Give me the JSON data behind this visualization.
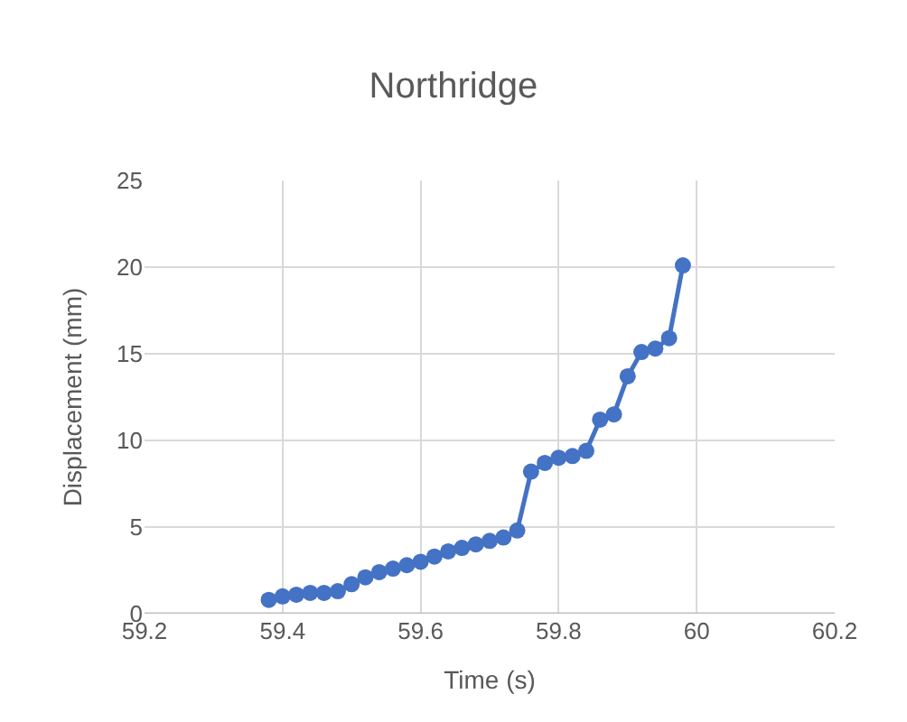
{
  "chart_data": {
    "type": "line",
    "title": "Northridge",
    "xlabel": "Time (s)",
    "ylabel": "Displacement (mm)",
    "x": [
      59.38,
      59.4,
      59.42,
      59.44,
      59.46,
      59.48,
      59.5,
      59.52,
      59.54,
      59.56,
      59.58,
      59.6,
      59.62,
      59.64,
      59.66,
      59.68,
      59.7,
      59.72,
      59.74,
      59.76,
      59.78,
      59.8,
      59.82,
      59.84,
      59.86,
      59.88,
      59.9,
      59.92,
      59.94,
      59.96,
      59.98
    ],
    "series": [
      {
        "color": "#4472c4",
        "values": [
          0.8,
          1.0,
          1.1,
          1.2,
          1.2,
          1.3,
          1.7,
          2.1,
          2.4,
          2.6,
          2.8,
          3.0,
          3.3,
          3.6,
          3.8,
          4.0,
          4.2,
          4.4,
          4.8,
          8.2,
          8.7,
          9.0,
          9.1,
          9.4,
          11.2,
          11.5,
          13.7,
          15.1,
          15.3,
          15.9,
          20.1
        ]
      }
    ],
    "xlim": [
      59.2,
      60.2
    ],
    "xticks": [
      {
        "value": 59.2,
        "label": "59.2"
      },
      {
        "value": 59.4,
        "label": "59.4"
      },
      {
        "value": 59.6,
        "label": "59.6"
      },
      {
        "value": 59.8,
        "label": "59.8"
      },
      {
        "value": 60,
        "label": "60"
      },
      {
        "value": 60.2,
        "label": "60.2"
      }
    ],
    "ylim": [
      0,
      25
    ],
    "yticks": [
      0,
      5,
      10,
      15,
      20,
      25
    ],
    "grid": true,
    "marker": "circle",
    "line_style": "solid"
  }
}
